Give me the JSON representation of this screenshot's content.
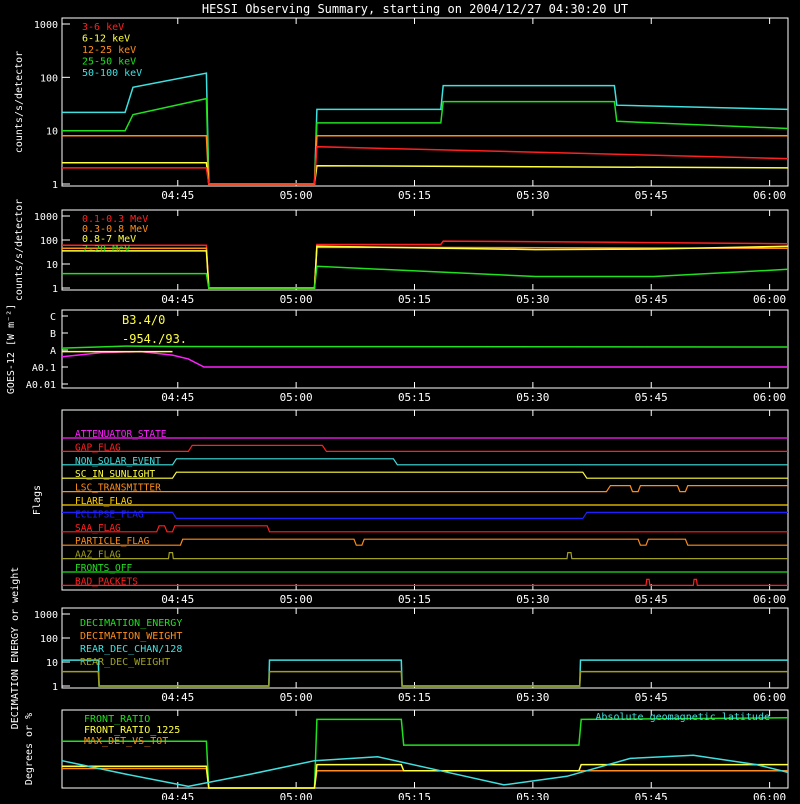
{
  "title": "HESSI Observing Summary, starting on 2004/12/27 04:30:20 UT",
  "time_ticks": [
    "04:45",
    "05:00",
    "05:15",
    "05:30",
    "05:45",
    "06:00"
  ],
  "colors": {
    "frame": "#ffffff",
    "red": "#ff2020",
    "orange": "#ff8c1a",
    "yellow": "#ffff40",
    "green": "#20e020",
    "cyan": "#40e0e0",
    "magenta": "#ff20ff",
    "olive": "#a0a020",
    "blue": "#2020ff",
    "gold": "#ffd000"
  },
  "chart_data": [
    {
      "id": "low",
      "type": "line",
      "ylabel": "counts/s/detector",
      "scale": "log",
      "ylim": [
        1,
        1000
      ],
      "yticks": [
        "1",
        "10",
        "100",
        "1000"
      ],
      "legend": [
        "3-6 keV",
        "6-12 keV",
        "12-25 keV",
        "25-50 keV",
        "50-100 keV"
      ],
      "series": [
        {
          "name": "50-100 keV",
          "color": "cyan",
          "x": [
            0,
            8,
            9,
            18.3,
            18.6,
            32,
            32.3,
            48,
            48.3,
            70,
            70.3,
            92
          ],
          "y": [
            22,
            22,
            65,
            120,
            1,
            1,
            25,
            25,
            70,
            70,
            30,
            25
          ]
        },
        {
          "name": "25-50 keV",
          "color": "green",
          "x": [
            0,
            8,
            9,
            18.3,
            18.6,
            32,
            32.3,
            48,
            48.3,
            70,
            70.3,
            92
          ],
          "y": [
            10,
            10,
            20,
            40,
            1,
            1,
            14,
            14,
            35,
            35,
            15,
            11
          ]
        },
        {
          "name": "12-25 keV",
          "color": "orange",
          "x": [
            0,
            18.3,
            18.6,
            32,
            32.3,
            92
          ],
          "y": [
            8,
            8,
            1,
            1,
            8,
            8
          ]
        },
        {
          "name": "6-12 keV",
          "color": "yellow",
          "x": [
            0,
            18.3,
            18.6,
            32,
            32.3,
            92
          ],
          "y": [
            2.5,
            2.5,
            1,
            1,
            2.2,
            2
          ]
        },
        {
          "name": "3-6 keV",
          "color": "red",
          "x": [
            0,
            18.3,
            18.6,
            32,
            32.3,
            92
          ],
          "y": [
            2,
            2,
            1,
            1,
            5,
            3
          ]
        }
      ]
    },
    {
      "id": "high",
      "type": "line",
      "ylabel": "counts/s/detector",
      "scale": "log",
      "ylim": [
        1,
        1000
      ],
      "yticks": [
        "1",
        "10",
        "100",
        "1000"
      ],
      "legend": [
        "0.1-0.3 MeV",
        "0.3-0.8 MeV",
        "0.8-7 MeV",
        "7-20 MeV"
      ],
      "series": [
        {
          "name": "0.1-0.3 MeV",
          "color": "red",
          "x": [
            0,
            18.3,
            18.6,
            32,
            32.3,
            48,
            48.3,
            70,
            92
          ],
          "y": [
            60,
            60,
            1,
            1,
            65,
            65,
            90,
            80,
            70
          ]
        },
        {
          "name": "0.3-0.8 MeV",
          "color": "orange",
          "x": [
            0,
            18.3,
            18.6,
            32,
            32.3,
            92
          ],
          "y": [
            45,
            45,
            1,
            1,
            50,
            45
          ]
        },
        {
          "name": "0.8-7 MeV",
          "color": "yellow",
          "x": [
            0,
            18.3,
            18.6,
            32,
            32.3,
            60,
            75,
            92
          ],
          "y": [
            35,
            35,
            1,
            1,
            55,
            40,
            42,
            55
          ]
        },
        {
          "name": "7-20 MeV",
          "color": "green",
          "x": [
            0,
            18.3,
            18.6,
            32,
            32.3,
            60,
            75,
            92
          ],
          "y": [
            4,
            4,
            1,
            1,
            8,
            3,
            3,
            6
          ]
        }
      ]
    },
    {
      "id": "goes",
      "type": "line",
      "ylabel": "GOES-12 [W m⁻²]",
      "scale": "log",
      "yticks": [
        "A0.01",
        "A0.1",
        "A",
        "B",
        "C"
      ],
      "annotations": [
        "B3.4/0",
        "-954./93."
      ],
      "series": [
        {
          "name": "long",
          "color": "green",
          "x": [
            0,
            8,
            14,
            92
          ],
          "y": [
            1.3,
            1.7,
            1.6,
            1.5
          ]
        },
        {
          "name": "short",
          "color": "magenta",
          "x": [
            0,
            5,
            10,
            14,
            16,
            18,
            92
          ],
          "y": [
            0.4,
            0.7,
            0.8,
            0.5,
            0.3,
            0.1,
            0.1
          ]
        },
        {
          "name": "ref",
          "color": "yellow",
          "x": [
            0,
            14
          ],
          "y": [
            0.8,
            0.8
          ]
        }
      ]
    },
    {
      "id": "flags",
      "type": "line",
      "ylabel": "Flags",
      "flags": [
        {
          "label": "ATTENUATOR_STATE",
          "color": "magenta",
          "x": [
            0,
            92
          ],
          "s": [
            0,
            0
          ]
        },
        {
          "label": "GAP_FLAG",
          "color": "red",
          "x": [
            0,
            16,
            16.5,
            33,
            33.5,
            92
          ],
          "s": [
            0,
            0,
            1,
            1,
            0,
            0
          ]
        },
        {
          "label": "NON_SOLAR_EVENT",
          "color": "cyan",
          "x": [
            0,
            14,
            14.5,
            42,
            42.5,
            92
          ],
          "s": [
            0,
            0,
            1,
            1,
            0,
            0
          ]
        },
        {
          "label": "SC_IN_SUNLIGHT",
          "color": "yellow",
          "x": [
            0,
            14,
            14.5,
            66,
            66.5,
            92
          ],
          "s": [
            0,
            0,
            1,
            1,
            0,
            0
          ]
        },
        {
          "label": "LSC_TRANSMITTER",
          "color": "orange",
          "x": [
            0,
            69,
            69.5,
            72,
            72.3,
            73,
            73.3,
            78,
            78.3,
            79,
            79.3,
            92
          ],
          "s": [
            0,
            0,
            1,
            1,
            0,
            0,
            1,
            1,
            0,
            0,
            1,
            1
          ]
        },
        {
          "label": "FLARE_FLAG",
          "color": "gold",
          "x": [
            0,
            92
          ],
          "s": [
            0,
            0
          ]
        },
        {
          "label": "ECLIPSE_FLAG",
          "color": "blue",
          "x": [
            0,
            14,
            14.5,
            66,
            66.5,
            92
          ],
          "s": [
            1,
            1,
            0,
            0,
            1,
            1
          ]
        },
        {
          "label": "SAA_FLAG",
          "color": "red",
          "x": [
            0,
            12,
            12.3,
            13,
            13.3,
            14,
            14.3,
            26,
            26.3,
            92
          ],
          "s": [
            0,
            0,
            1,
            1,
            0,
            0,
            1,
            1,
            0,
            0
          ]
        },
        {
          "label": "PARTICLE_FLAG",
          "color": "orange",
          "x": [
            0,
            15,
            15.3,
            37,
            37.3,
            38,
            38.3,
            73,
            73.3,
            74,
            74.3,
            79,
            79.3,
            92
          ],
          "s": [
            0,
            0,
            1,
            1,
            0,
            0,
            1,
            1,
            0,
            0,
            1,
            1,
            0,
            0
          ]
        },
        {
          "label": "AAZ_FLAG",
          "color": "olive",
          "x": [
            0,
            13.5,
            13.6,
            14,
            14.1,
            64,
            64.1,
            64.5,
            64.6,
            92
          ],
          "s": [
            0,
            0,
            1,
            1,
            0,
            0,
            1,
            1,
            0,
            0
          ]
        },
        {
          "label": "FRONTS_OFF",
          "color": "green",
          "x": [
            0,
            92
          ],
          "s": [
            0,
            0
          ]
        },
        {
          "label": "BAD_PACKETS",
          "color": "red",
          "x": [
            0,
            74,
            74.1,
            74.4,
            74.5,
            80,
            80.1,
            80.4,
            80.5,
            92
          ],
          "s": [
            0,
            0,
            1,
            1,
            0,
            0,
            1,
            1,
            0,
            0
          ]
        }
      ]
    },
    {
      "id": "decim",
      "type": "line",
      "ylabel": "DECIMATION ENERGY or weight",
      "scale": "log",
      "ylim": [
        1,
        1000
      ],
      "yticks": [
        "1",
        "10",
        "100",
        "1000"
      ],
      "legend": [
        "DECIMATION_ENERGY",
        "DECIMATION_WEIGHT",
        "REAR_DEC_CHAN/128",
        "REAR_DEC_WEIGHT"
      ],
      "series": [
        {
          "name": "REAR_DEC_CHAN/128",
          "color": "cyan",
          "x": [
            0,
            4.6,
            4.7,
            26.2,
            26.3,
            43,
            43.1,
            65.6,
            65.7,
            92
          ],
          "y": [
            12,
            12,
            1,
            1,
            12,
            12,
            1,
            1,
            12,
            12
          ]
        },
        {
          "name": "REAR_DEC_WEIGHT",
          "color": "olive",
          "x": [
            0,
            4.6,
            4.7,
            26.2,
            26.3,
            43,
            43.1,
            65.6,
            65.7,
            92
          ],
          "y": [
            4,
            4,
            1,
            1,
            4,
            4,
            1,
            1,
            4,
            4
          ]
        }
      ]
    },
    {
      "id": "ratio",
      "type": "line",
      "ylabel": "Degrees or %",
      "ylim": [
        0,
        100
      ],
      "legend": [
        "FRONT_RATIO",
        "FRONT_RATIO_1225",
        "MAX_DET_VS_TOT"
      ],
      "annotations": [
        "Absolute geomagnetic latitude"
      ],
      "series": [
        {
          "name": "FRONT_RATIO",
          "color": "green",
          "x": [
            0,
            18.3,
            18.6,
            32,
            32.3,
            43,
            43.3,
            65.5,
            65.8,
            92
          ],
          "y": [
            60,
            60,
            0,
            0,
            88,
            88,
            55,
            55,
            88,
            90
          ]
        },
        {
          "name": "MAX_DET_VS_TOT",
          "color": "orange",
          "x": [
            0,
            18.3,
            18.6,
            32,
            32.3,
            92
          ],
          "y": [
            25,
            25,
            0,
            0,
            22,
            22
          ]
        },
        {
          "name": "FRONT_RATIO_1225",
          "color": "yellow",
          "x": [
            0,
            18.3,
            18.6,
            32,
            32.3,
            43,
            43.3,
            65.5,
            65.8,
            92
          ],
          "y": [
            28,
            28,
            0,
            0,
            30,
            30,
            22,
            22,
            30,
            30
          ]
        },
        {
          "name": "Absolute geomagnetic latitude",
          "color": "cyan",
          "x": [
            0,
            8,
            16,
            24,
            32,
            40,
            48,
            56,
            64,
            72,
            80,
            88,
            92
          ],
          "y": [
            35,
            18,
            2,
            18,
            35,
            40,
            22,
            4,
            15,
            38,
            42,
            30,
            20
          ]
        }
      ]
    }
  ]
}
